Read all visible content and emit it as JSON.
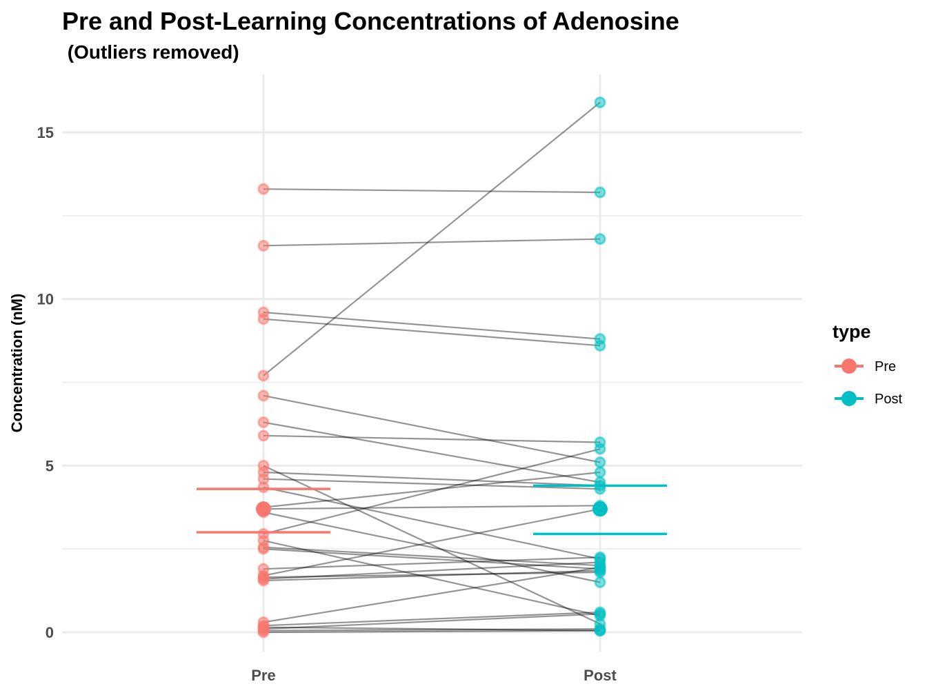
{
  "chart_data": {
    "type": "scatter",
    "title": "Pre and Post-Learning Concentrations of Adenosine",
    "subtitle": " (Outliers removed)",
    "xlabel": "",
    "ylabel": "Concentration (nM)",
    "categories": [
      "Pre",
      "Post"
    ],
    "ylim": [
      -0.3,
      16.3
    ],
    "yticks": [
      0,
      5,
      10,
      15
    ],
    "grid": true,
    "legend": {
      "title": "type",
      "position": "right",
      "items": [
        {
          "label": "Pre",
          "color": "#F8766D"
        },
        {
          "label": "Post",
          "color": "#00BFC4"
        }
      ]
    },
    "pairs": [
      [
        13.3,
        13.2
      ],
      [
        11.6,
        11.8
      ],
      [
        9.6,
        8.8
      ],
      [
        9.4,
        8.6
      ],
      [
        7.7,
        15.9
      ],
      [
        7.1,
        5.1
      ],
      [
        6.3,
        4.5
      ],
      [
        5.9,
        5.7
      ],
      [
        5.0,
        0.25
      ],
      [
        4.8,
        4.4
      ],
      [
        4.6,
        4.3
      ],
      [
        4.35,
        2.2
      ],
      [
        3.75,
        4.8
      ],
      [
        3.7,
        3.8
      ],
      [
        3.6,
        1.5
      ],
      [
        2.95,
        5.5
      ],
      [
        2.75,
        0.5
      ],
      [
        2.55,
        2.0
      ],
      [
        2.5,
        1.9
      ],
      [
        1.9,
        2.25
      ],
      [
        1.7,
        3.7
      ],
      [
        1.65,
        1.8
      ],
      [
        1.6,
        2.1
      ],
      [
        1.55,
        1.85
      ],
      [
        0.3,
        1.95
      ],
      [
        0.2,
        0.6
      ],
      [
        0.15,
        0.05
      ],
      [
        0.1,
        0.55
      ],
      [
        0.05,
        0.1
      ],
      [
        0.0,
        0.05
      ]
    ],
    "summary": {
      "Pre": {
        "mean_point": 3.7,
        "upper_line": 4.3,
        "lower_line": 3.0
      },
      "Post": {
        "mean_point": 3.7,
        "upper_line": 4.4,
        "lower_line": 2.95
      }
    },
    "colors": {
      "Pre": "#F8766D",
      "Post": "#00BFC4",
      "pair_line": "#000000",
      "grid": "#ebebeb"
    }
  }
}
